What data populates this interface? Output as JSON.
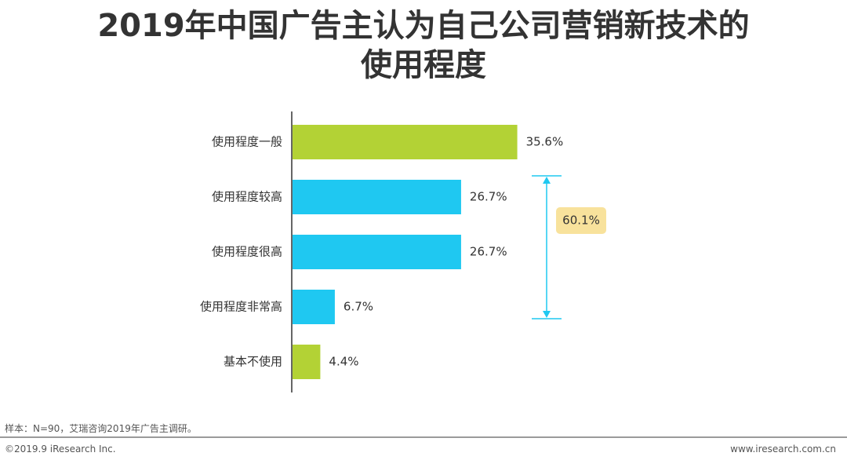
{
  "title_line1": "2019年中国广告主认为自己公司营销新技术的",
  "title_line2": "使用程度",
  "chart_data": {
    "type": "bar",
    "orientation": "horizontal",
    "categories": [
      "使用程度一般",
      "使用程度较高",
      "使用程度很高",
      "使用程度非常高",
      "基本不使用"
    ],
    "values": [
      35.6,
      26.7,
      26.7,
      6.7,
      4.4
    ],
    "value_labels": [
      "35.6%",
      "26.7%",
      "26.7%",
      "6.7%",
      "4.4%"
    ],
    "bar_colors": [
      "#b3d235",
      "#1fc8f1",
      "#1fc8f1",
      "#1fc8f1",
      "#b3d235"
    ],
    "bracket": {
      "from_category": "使用程度较高",
      "to_category": "使用程度非常高",
      "label": "60.1%",
      "color": "#1fc8f1",
      "label_bg": "#f8e29c"
    }
  },
  "footer": {
    "note": "样本：N=90，艾瑞咨询2019年广告主调研。",
    "copyright": "©2019.9 iResearch Inc.",
    "website": "www.iresearch.com.cn"
  }
}
